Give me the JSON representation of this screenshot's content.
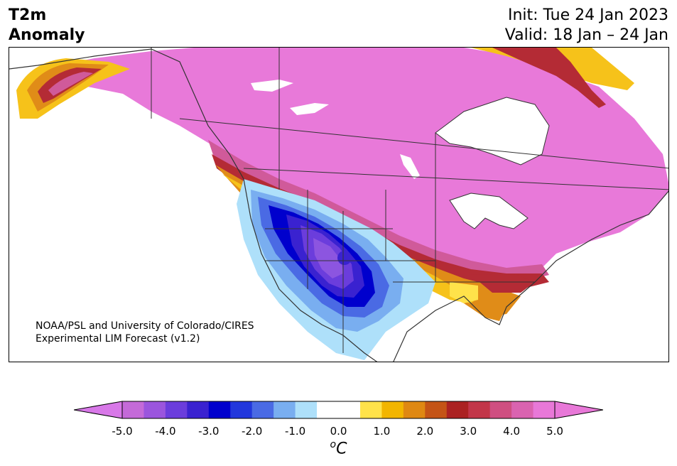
{
  "title": {
    "left_line1": "T2m",
    "left_line2": "Anomaly",
    "init": "Init: Tue 24 Jan 2023",
    "valid": "Valid: 18 Jan – 24 Jan"
  },
  "credit": {
    "line1": "NOAA/PSL and University of Colorado/CIRES",
    "line2": "Experimental LIM Forecast (v1.2)"
  },
  "colorbar": {
    "unit_base": "C",
    "unit_sup": "o",
    "ticks": [
      "-5.0",
      "-4.0",
      "-3.0",
      "-2.0",
      "-1.0",
      "0.0",
      "1.0",
      "2.0",
      "3.0",
      "4.0",
      "5.0"
    ],
    "colors": [
      "#c46ad8",
      "#9b55dd",
      "#6b3ddc",
      "#3a22d0",
      "#0000cd",
      "#2237dc",
      "#4a6ae4",
      "#79aef0",
      "#aee0fa",
      "#ffffff",
      "#ffffff",
      "#ffe24a",
      "#f2b500",
      "#df8812",
      "#c45416",
      "#ab2222",
      "#c23649",
      "#cf4f81",
      "#da63b0",
      "#e878d8"
    ],
    "under_color": "#d878e8",
    "over_color": "#e878d8"
  },
  "map": {
    "colors": {
      "pink": "#e879d9",
      "magenta": "#d05a9a",
      "red": "#b42b35",
      "orange": "#e08c18",
      "yellow": "#f6c21a",
      "paleyellow": "#ffe24a",
      "paleblue": "#aee0fa",
      "lightblue": "#79aef0",
      "blue": "#4a6ae4",
      "darkblue": "#0000cd",
      "indigo": "#3a22d0",
      "purple": "#6b3ddc",
      "lavender": "#8c55e0",
      "border": "#333333"
    }
  }
}
